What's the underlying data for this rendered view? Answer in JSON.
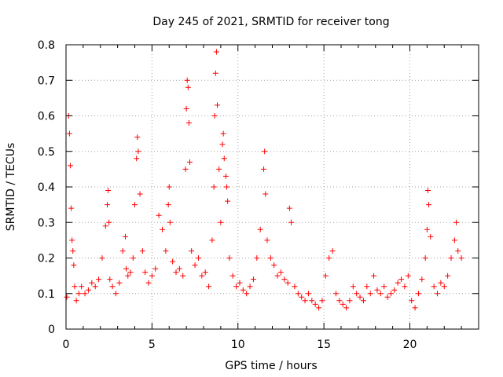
{
  "chart_data": {
    "type": "scatter",
    "title": "Day 245 of 2021, SRMTID for receiver tong",
    "xlabel": "GPS time / hours",
    "ylabel": "SRMTID / TECUs",
    "xlim": [
      0,
      24
    ],
    "ylim": [
      0,
      0.8
    ],
    "x_ticks": [
      0,
      5,
      10,
      15,
      20
    ],
    "x_tick_labels": [
      "0",
      "5",
      "10",
      "15",
      "20"
    ],
    "y_ticks": [
      0,
      0.1,
      0.2,
      0.3,
      0.4,
      0.5,
      0.6,
      0.7,
      0.8
    ],
    "y_tick_labels": [
      "0",
      "0.1",
      "0.2",
      "0.3",
      "0.4",
      "0.5",
      "0.6",
      "0.7",
      "0.8"
    ],
    "grid": true,
    "marker": "+",
    "marker_color": "#ff0000",
    "series": [
      {
        "name": "SRMTID",
        "x": [
          0.05,
          0.15,
          0.2,
          0.25,
          0.3,
          0.35,
          0.4,
          0.45,
          0.5,
          0.6,
          0.75,
          0.9,
          1.1,
          1.3,
          1.5,
          1.7,
          1.9,
          2.1,
          2.3,
          2.4,
          2.45,
          2.5,
          2.55,
          2.7,
          2.9,
          3.1,
          3.3,
          3.45,
          3.5,
          3.6,
          3.75,
          3.9,
          4.0,
          4.1,
          4.15,
          4.2,
          4.3,
          4.45,
          4.6,
          4.8,
          5.0,
          5.2,
          5.4,
          5.6,
          5.8,
          5.95,
          6.0,
          6.05,
          6.2,
          6.4,
          6.6,
          6.8,
          6.95,
          7.0,
          7.05,
          7.1,
          7.15,
          7.2,
          7.3,
          7.5,
          7.7,
          7.9,
          8.1,
          8.3,
          8.5,
          8.6,
          8.65,
          8.7,
          8.75,
          8.8,
          8.9,
          9.0,
          9.1,
          9.15,
          9.2,
          9.3,
          9.35,
          9.4,
          9.5,
          9.7,
          9.9,
          10.1,
          10.3,
          10.5,
          10.7,
          10.9,
          11.1,
          11.3,
          11.5,
          11.55,
          11.6,
          11.7,
          11.9,
          12.1,
          12.3,
          12.5,
          12.7,
          12.9,
          13.0,
          13.1,
          13.3,
          13.5,
          13.7,
          13.9,
          14.1,
          14.3,
          14.5,
          14.7,
          14.9,
          15.1,
          15.3,
          15.5,
          15.7,
          15.9,
          16.1,
          16.3,
          16.5,
          16.7,
          16.9,
          17.1,
          17.3,
          17.5,
          17.7,
          17.9,
          18.1,
          18.3,
          18.5,
          18.7,
          18.9,
          19.1,
          19.3,
          19.5,
          19.7,
          19.9,
          20.1,
          20.3,
          20.5,
          20.7,
          20.9,
          21.0,
          21.05,
          21.1,
          21.2,
          21.4,
          21.6,
          21.8,
          22.0,
          22.2,
          22.4,
          22.6,
          22.7,
          22.8,
          23.0
        ],
        "y": [
          0.09,
          0.6,
          0.55,
          0.46,
          0.34,
          0.25,
          0.22,
          0.18,
          0.12,
          0.08,
          0.1,
          0.12,
          0.1,
          0.11,
          0.13,
          0.12,
          0.14,
          0.2,
          0.29,
          0.35,
          0.39,
          0.3,
          0.14,
          0.12,
          0.1,
          0.13,
          0.22,
          0.26,
          0.17,
          0.15,
          0.16,
          0.2,
          0.35,
          0.48,
          0.54,
          0.5,
          0.38,
          0.22,
          0.16,
          0.13,
          0.15,
          0.17,
          0.32,
          0.28,
          0.22,
          0.35,
          0.4,
          0.3,
          0.19,
          0.16,
          0.17,
          0.15,
          0.45,
          0.62,
          0.7,
          0.68,
          0.58,
          0.47,
          0.22,
          0.18,
          0.2,
          0.15,
          0.16,
          0.12,
          0.25,
          0.4,
          0.6,
          0.72,
          0.78,
          0.63,
          0.45,
          0.3,
          0.52,
          0.55,
          0.48,
          0.43,
          0.4,
          0.36,
          0.2,
          0.15,
          0.12,
          0.13,
          0.11,
          0.1,
          0.12,
          0.14,
          0.2,
          0.28,
          0.45,
          0.5,
          0.38,
          0.25,
          0.2,
          0.18,
          0.15,
          0.16,
          0.14,
          0.13,
          0.34,
          0.3,
          0.12,
          0.1,
          0.09,
          0.08,
          0.1,
          0.08,
          0.07,
          0.06,
          0.08,
          0.15,
          0.2,
          0.22,
          0.1,
          0.08,
          0.07,
          0.06,
          0.08,
          0.12,
          0.1,
          0.09,
          0.08,
          0.12,
          0.1,
          0.15,
          0.11,
          0.1,
          0.12,
          0.09,
          0.1,
          0.11,
          0.13,
          0.14,
          0.12,
          0.15,
          0.08,
          0.06,
          0.1,
          0.14,
          0.2,
          0.28,
          0.39,
          0.35,
          0.26,
          0.12,
          0.1,
          0.13,
          0.12,
          0.15,
          0.2,
          0.25,
          0.3,
          0.22,
          0.2
        ]
      }
    ]
  }
}
